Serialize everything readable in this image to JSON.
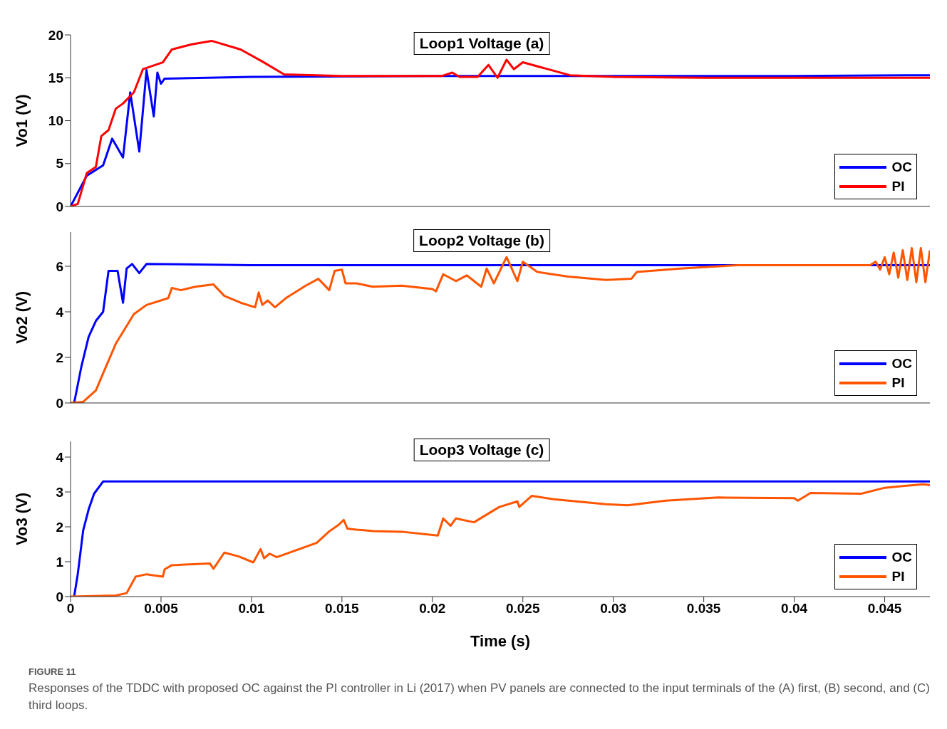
{
  "chart_data": [
    {
      "type": "line",
      "title": "Loop1 Voltage (a)",
      "ylabel": "Vo1 (V)",
      "xlim": [
        0,
        0.0475
      ],
      "xticks": [
        0,
        0.005,
        0.01,
        0.015,
        0.02,
        0.025,
        0.03,
        0.035,
        0.04,
        0.045
      ],
      "ylim": [
        0,
        20
      ],
      "yticks": [
        0,
        5,
        10,
        15,
        20
      ],
      "tick_labels": "y",
      "legend": "bottom right",
      "series": [
        {
          "name": "OC",
          "color": "#0000ff",
          "x": [
            0,
            0.0009,
            0.0018,
            0.0023,
            0.0029,
            0.0033,
            0.0038,
            0.0042,
            0.0046,
            0.0048,
            0.005,
            0.0052,
            0.01,
            0.02,
            0.03,
            0.04,
            0.0475
          ],
          "values": [
            0,
            3.6,
            4.8,
            7.9,
            5.7,
            13.3,
            6.4,
            15.9,
            10.5,
            15.6,
            14.3,
            14.9,
            15.1,
            15.2,
            15.2,
            15.2,
            15.3
          ]
        },
        {
          "name": "PI",
          "color": "#ff0000",
          "x": [
            0,
            0.0004,
            0.0009,
            0.0014,
            0.0017,
            0.0021,
            0.0025,
            0.0029,
            0.0035,
            0.004,
            0.0051,
            0.0056,
            0.0067,
            0.0078,
            0.0094,
            0.0106,
            0.0118,
            0.015,
            0.0205,
            0.0211,
            0.0215,
            0.0225,
            0.0231,
            0.0236,
            0.0241,
            0.0245,
            0.025,
            0.0276,
            0.03,
            0.035,
            0.04,
            0.0475
          ],
          "values": [
            0,
            0.3,
            3.9,
            4.6,
            8.2,
            8.9,
            11.4,
            12.0,
            13.3,
            16.0,
            16.8,
            18.3,
            18.9,
            19.3,
            18.3,
            16.9,
            15.4,
            15.2,
            15.2,
            15.6,
            15.1,
            15.1,
            16.5,
            15.0,
            17.1,
            16.0,
            16.8,
            15.3,
            15.1,
            15.0,
            15.0,
            15.0
          ]
        }
      ]
    },
    {
      "type": "line",
      "title": "Loop2 Voltage (b)",
      "ylabel": "Vo2 (V)",
      "xlim": [
        0,
        0.0475
      ],
      "xticks": [
        0,
        0.005,
        0.01,
        0.015,
        0.02,
        0.025,
        0.03,
        0.035,
        0.04,
        0.045
      ],
      "ylim": [
        0,
        7.5
      ],
      "yticks": [
        0,
        2,
        4,
        6
      ],
      "tick_labels": "y",
      "legend": "bottom right",
      "series": [
        {
          "name": "OC",
          "color": "#0000ff",
          "x": [
            0.0002,
            0.0006,
            0.001,
            0.0014,
            0.0018,
            0.0021,
            0.0026,
            0.0029,
            0.0031,
            0.0034,
            0.0038,
            0.0042,
            0.01,
            0.02,
            0.03,
            0.04,
            0.0475
          ],
          "values": [
            0,
            1.6,
            2.9,
            3.6,
            4.0,
            5.8,
            5.8,
            4.4,
            5.9,
            6.1,
            5.7,
            6.1,
            6.05,
            6.05,
            6.05,
            6.05,
            6.05
          ]
        },
        {
          "name": "PI",
          "color": "#ff5500",
          "x": [
            0,
            0.0007,
            0.0014,
            0.0018,
            0.0025,
            0.0035,
            0.0042,
            0.0054,
            0.0056,
            0.0061,
            0.0069,
            0.0079,
            0.0085,
            0.0094,
            0.0102,
            0.0104,
            0.0106,
            0.0109,
            0.0113,
            0.0119,
            0.013,
            0.0137,
            0.0143,
            0.0146,
            0.015,
            0.0152,
            0.0158,
            0.0167,
            0.0183,
            0.02,
            0.0202,
            0.0206,
            0.0213,
            0.0219,
            0.0227,
            0.023,
            0.0234,
            0.0241,
            0.0247,
            0.025,
            0.0258,
            0.0275,
            0.0296,
            0.031,
            0.0313,
            0.0337,
            0.0369,
            0.0421,
            0.0442,
            0.0445,
            0.04475,
            0.045,
            0.04525,
            0.0455,
            0.04575,
            0.046,
            0.04625,
            0.0465,
            0.04675,
            0.047,
            0.04725,
            0.0475
          ],
          "values": [
            0,
            0.05,
            0.55,
            1.3,
            2.6,
            3.9,
            4.3,
            4.6,
            5.05,
            4.95,
            5.1,
            5.2,
            4.7,
            4.4,
            4.2,
            4.85,
            4.3,
            4.5,
            4.2,
            4.6,
            5.15,
            5.45,
            4.95,
            5.8,
            5.85,
            5.25,
            5.25,
            5.1,
            5.15,
            5.0,
            4.9,
            5.65,
            5.35,
            5.6,
            5.1,
            5.9,
            5.25,
            6.4,
            5.35,
            6.2,
            5.75,
            5.55,
            5.4,
            5.45,
            5.75,
            5.9,
            6.05,
            6.05,
            6.05,
            6.2,
            5.85,
            6.4,
            5.65,
            6.6,
            5.5,
            6.7,
            5.4,
            6.8,
            5.3,
            6.8,
            5.3,
            6.7
          ]
        }
      ]
    },
    {
      "type": "line",
      "title": "Loop3 Voltage (c)",
      "xlabel": "Time (s)",
      "ylabel": "Vo3 (V)",
      "xlim": [
        0,
        0.0475
      ],
      "xticks": [
        0,
        0.005,
        0.01,
        0.015,
        0.02,
        0.025,
        0.03,
        0.035,
        0.04,
        0.045
      ],
      "ylim": [
        0,
        4.45
      ],
      "yticks": [
        0,
        1,
        2,
        3,
        4
      ],
      "legend": "bottom right",
      "annotations": [
        "FIGURE 11",
        "Responses of the TDDC with proposed OC against the PI controller in Li (2017) when PV panels are connected to the input terminals of the (A) first, (B) second, and (C) third loops."
      ],
      "series": [
        {
          "name": "OC",
          "color": "#0000ff",
          "x": [
            0.0002,
            0.0004,
            0.0007,
            0.001,
            0.0013,
            0.0018,
            0.01,
            0.02,
            0.03,
            0.04,
            0.0475
          ],
          "values": [
            0,
            0.65,
            1.9,
            2.5,
            2.95,
            3.3,
            3.3,
            3.3,
            3.3,
            3.3,
            3.3
          ]
        },
        {
          "name": "PI",
          "color": "#ff5500",
          "x": [
            0,
            0.0025,
            0.0031,
            0.0036,
            0.0042,
            0.0051,
            0.0052,
            0.0056,
            0.0077,
            0.0079,
            0.0085,
            0.0093,
            0.0101,
            0.0105,
            0.0107,
            0.011,
            0.0114,
            0.0136,
            0.0143,
            0.0148,
            0.0151,
            0.0153,
            0.0158,
            0.0167,
            0.0183,
            0.0203,
            0.0206,
            0.021,
            0.0213,
            0.0223,
            0.0237,
            0.0247,
            0.0248,
            0.0255,
            0.0267,
            0.0296,
            0.0308,
            0.0329,
            0.0358,
            0.04,
            0.0402,
            0.0409,
            0.0437,
            0.045,
            0.0471,
            0.0475
          ],
          "values": [
            0,
            0.03,
            0.1,
            0.57,
            0.64,
            0.57,
            0.78,
            0.9,
            0.95,
            0.8,
            1.26,
            1.15,
            0.98,
            1.36,
            1.1,
            1.23,
            1.13,
            1.54,
            1.87,
            2.05,
            2.2,
            1.95,
            1.92,
            1.88,
            1.86,
            1.75,
            2.24,
            2.03,
            2.24,
            2.13,
            2.57,
            2.73,
            2.57,
            2.89,
            2.79,
            2.65,
            2.62,
            2.75,
            2.84,
            2.82,
            2.75,
            2.97,
            2.95,
            3.12,
            3.22,
            3.2
          ]
        }
      ]
    }
  ]
}
